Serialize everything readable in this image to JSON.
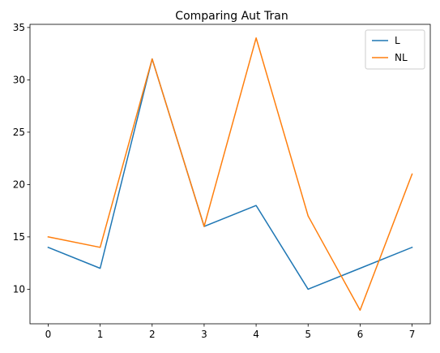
{
  "chart_data": {
    "type": "line",
    "title": "Comparing Aut Tran",
    "xlabel": "",
    "ylabel": "",
    "x": [
      0,
      1,
      2,
      3,
      4,
      5,
      6,
      7
    ],
    "xticks": [
      0,
      1,
      2,
      3,
      4,
      5,
      6,
      7
    ],
    "yticks": [
      10,
      15,
      20,
      25,
      30,
      35
    ],
    "xlim": [
      -0.35,
      7.35
    ],
    "ylim": [
      6.7,
      35.3
    ],
    "grid": false,
    "legend_position": "top-right",
    "series": [
      {
        "name": "L",
        "color": "#1f77b4",
        "values": [
          14,
          12,
          32,
          16,
          18,
          10,
          12,
          14
        ]
      },
      {
        "name": "NL",
        "color": "#ff7f0e",
        "values": [
          15,
          14,
          32,
          16,
          34,
          17,
          8,
          21
        ]
      }
    ]
  }
}
